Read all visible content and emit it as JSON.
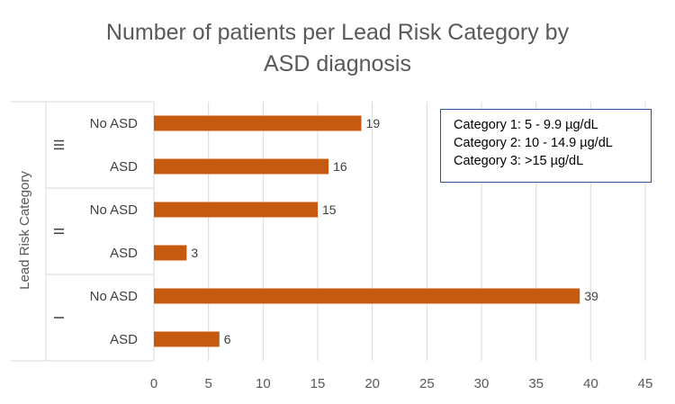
{
  "chart_data": {
    "type": "bar",
    "orientation": "horizontal",
    "title": "Number of patients per Lead Risk Category by ASD diagnosis",
    "title_lines": [
      "Number of patients per Lead Risk Category by",
      "ASD diagnosis"
    ],
    "ylabel": "Lead Risk Category",
    "xlabel": "",
    "xlim": [
      0,
      45
    ],
    "xticks": [
      0,
      5,
      10,
      15,
      20,
      25,
      30,
      35,
      40,
      45
    ],
    "grid": "vertical",
    "bar_color": "#c55a11",
    "groups": [
      {
        "label": "III",
        "items": [
          {
            "category": "No ASD",
            "value": 19
          },
          {
            "category": "ASD",
            "value": 16
          }
        ]
      },
      {
        "label": "II",
        "items": [
          {
            "category": "No ASD",
            "value": 15
          },
          {
            "category": "ASD",
            "value": 3
          }
        ]
      },
      {
        "label": "I",
        "items": [
          {
            "category": "No ASD",
            "value": 39
          },
          {
            "category": "ASD",
            "value": 6
          }
        ]
      }
    ],
    "annotation_box": {
      "lines": [
        "Category 1: 5 - 9.9 µg/dL",
        "Category 2: 10 - 14.9 µg/dL",
        "Category 3: >15 µg/dL"
      ],
      "border_color": "#2f5597",
      "placement": "top-right"
    }
  }
}
